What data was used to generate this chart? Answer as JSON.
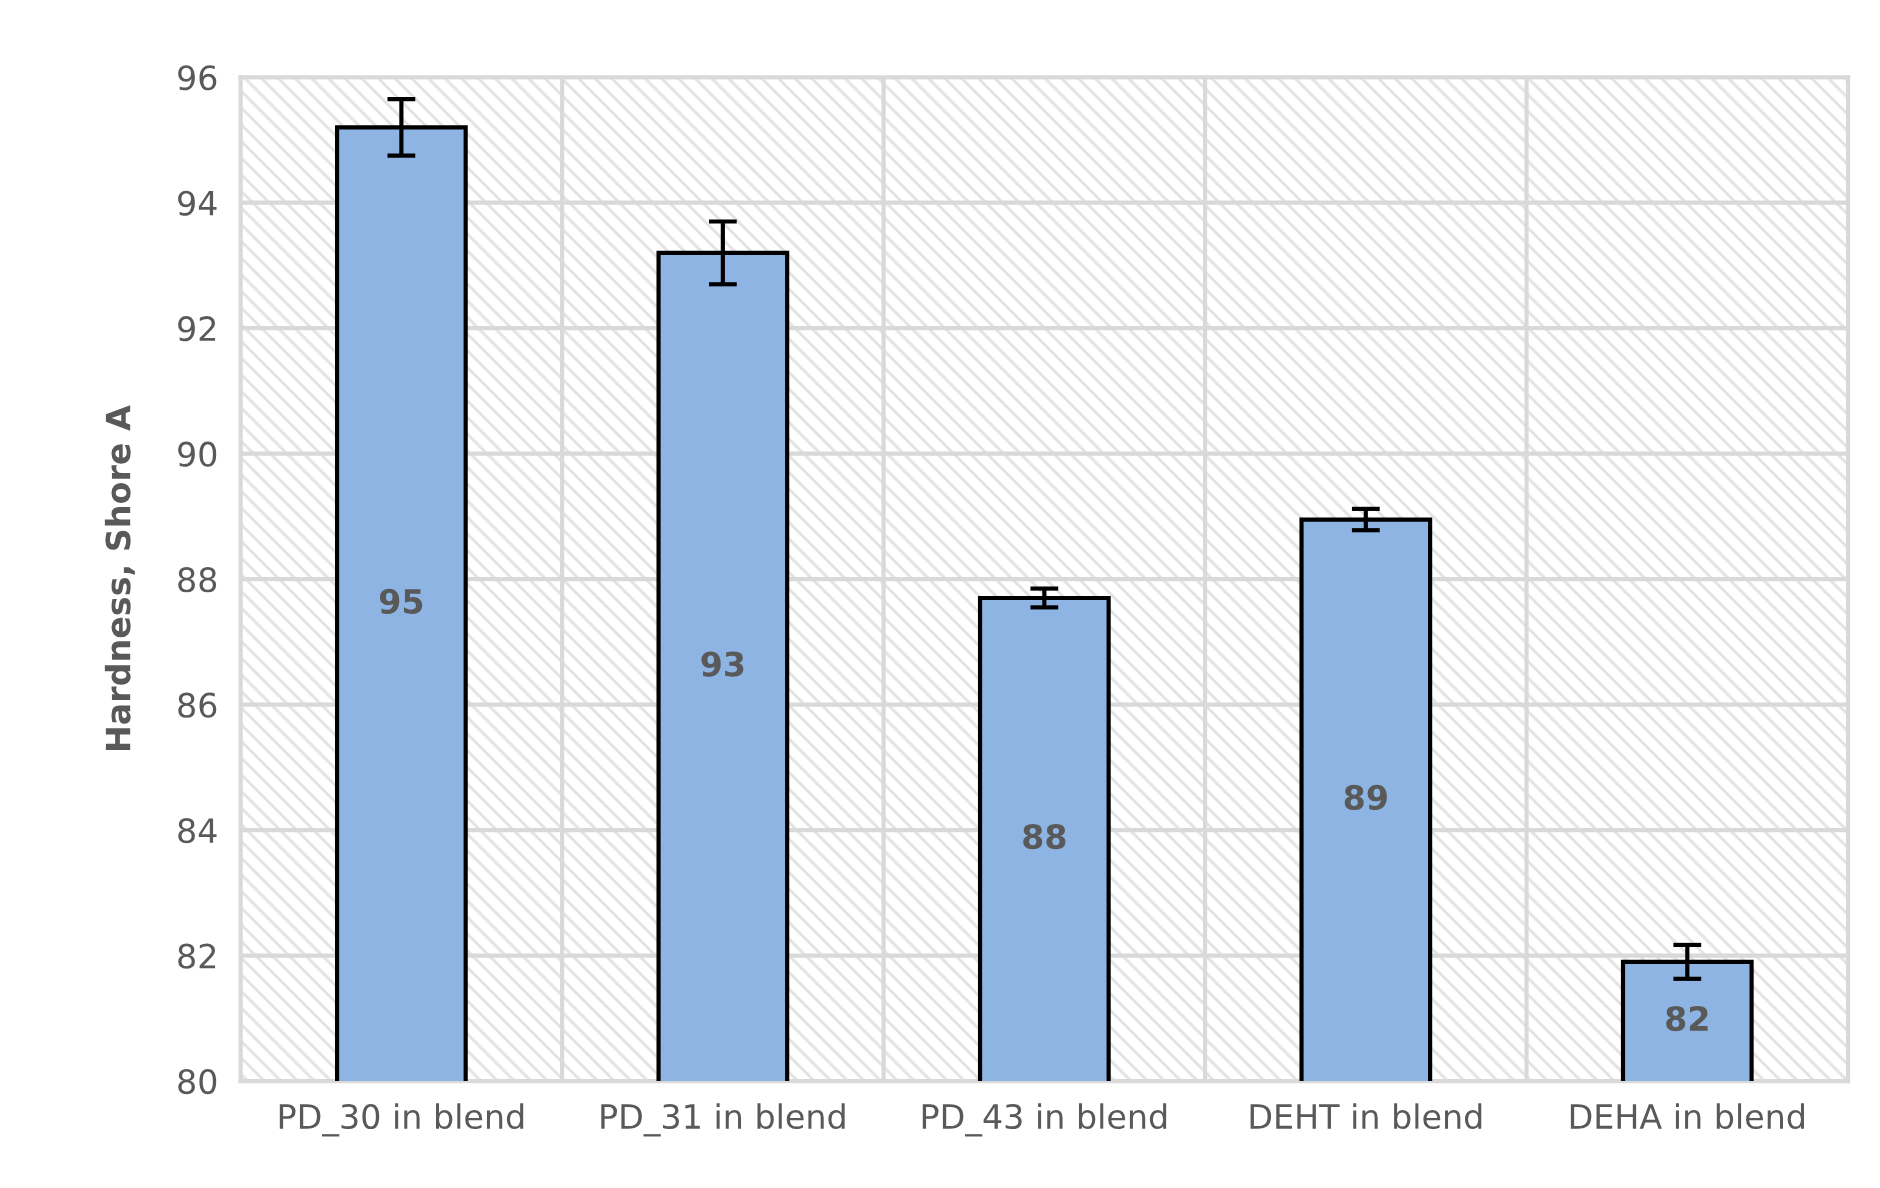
{
  "chart_data": {
    "type": "bar",
    "ylabel": "Hardness, Shore A",
    "categories": [
      "PD_30 in blend",
      "PD_31 in blend",
      "PD_43 in blend",
      "DEHT in blend",
      "DEHA in blend"
    ],
    "values": [
      95.2,
      93.2,
      87.7,
      88.95,
      81.9
    ],
    "errors": [
      0.45,
      0.5,
      0.15,
      0.17,
      0.27
    ],
    "value_labels": [
      "95",
      "93",
      "88",
      "89",
      "82"
    ],
    "color": "#8eb4e3",
    "ylim": [
      80,
      96
    ],
    "yticks": [
      80,
      82,
      84,
      86,
      88,
      90,
      92,
      94,
      96
    ],
    "grid": true
  }
}
